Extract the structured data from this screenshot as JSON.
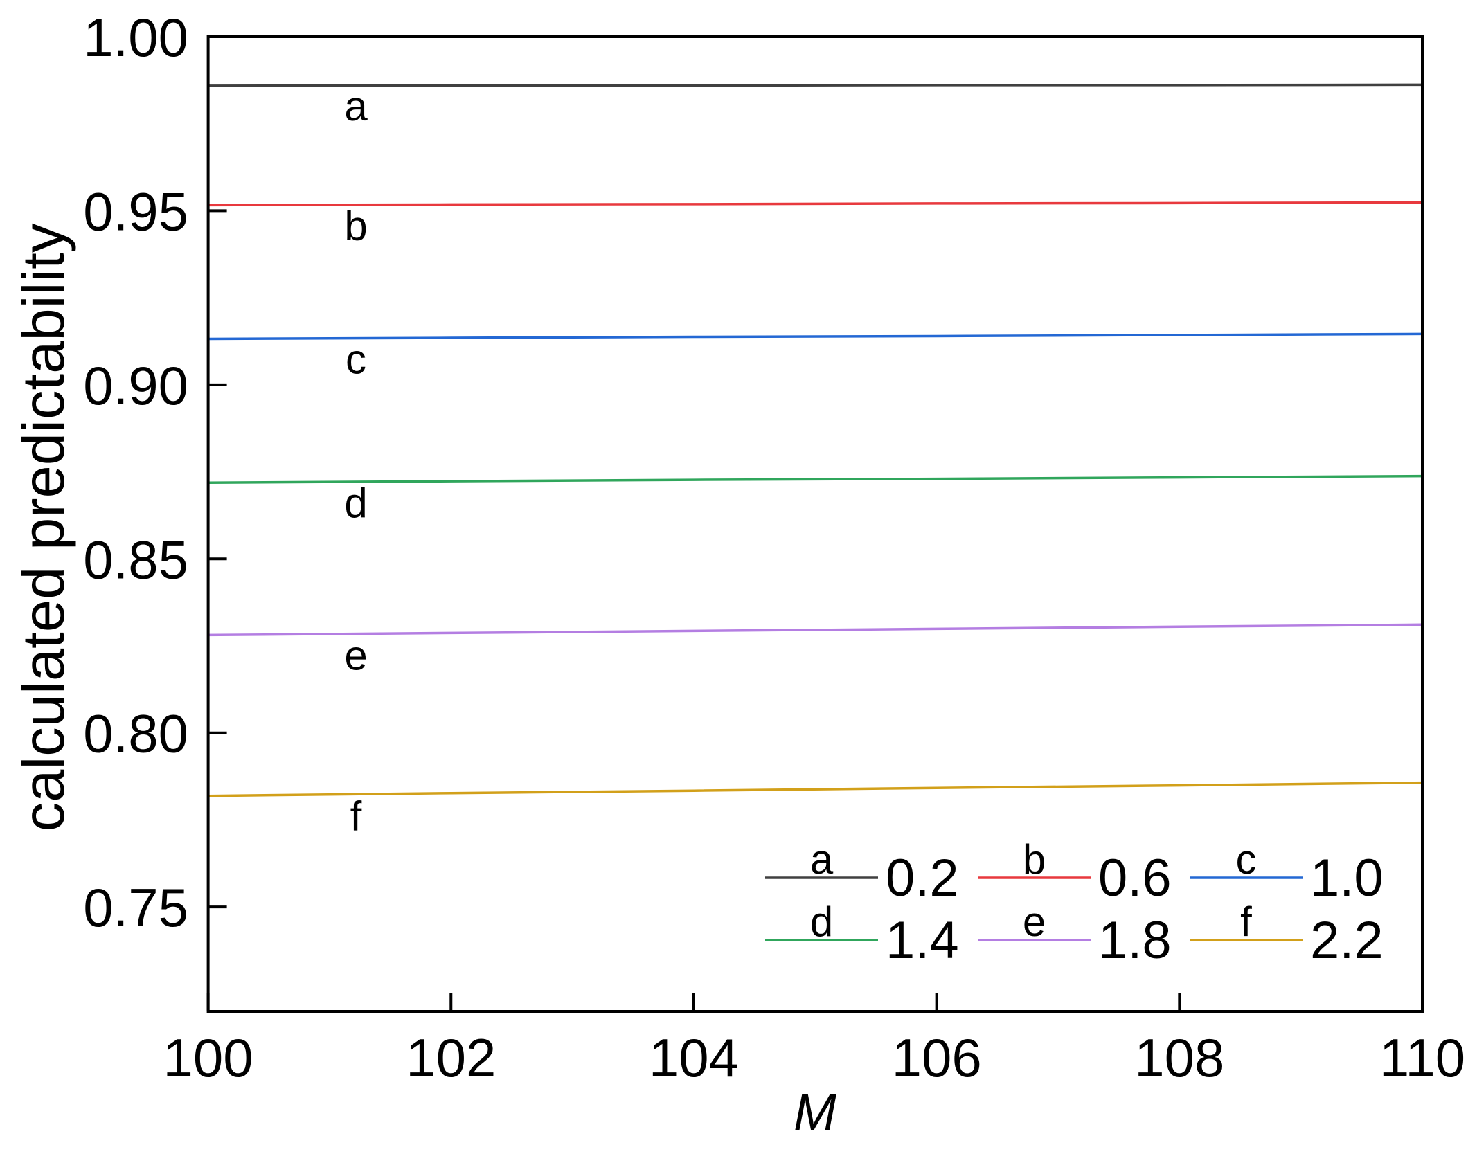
{
  "chart_data": {
    "type": "line",
    "xlabel": "M",
    "ylabel": "calculated predictability",
    "xlim": [
      100,
      110
    ],
    "ylim": [
      0.72,
      1.0
    ],
    "xticks": [
      "100",
      "102",
      "104",
      "106",
      "108",
      "110"
    ],
    "yticks": [
      "0.75",
      "0.80",
      "0.85",
      "0.90",
      "0.95",
      "1.00"
    ],
    "grid": false,
    "legend_position": "bottom-right",
    "x": [
      100,
      102,
      104,
      106,
      108,
      110
    ],
    "series": [
      {
        "label": "a",
        "name": "0.2",
        "color": "#404040",
        "values": [
          0.9859,
          0.986,
          0.986,
          0.9861,
          0.9861,
          0.9862
        ]
      },
      {
        "label": "b",
        "name": "0.6",
        "color": "#e8393e",
        "values": [
          0.9516,
          0.9518,
          0.9519,
          0.9521,
          0.9522,
          0.9524
        ]
      },
      {
        "label": "c",
        "name": "1.0",
        "color": "#2468d4",
        "values": [
          0.9132,
          0.9135,
          0.9138,
          0.914,
          0.9143,
          0.9146
        ]
      },
      {
        "label": "d",
        "name": "1.4",
        "color": "#30a65c",
        "values": [
          0.8719,
          0.8723,
          0.8727,
          0.873,
          0.8734,
          0.8738
        ]
      },
      {
        "label": "e",
        "name": "1.8",
        "color": "#b47ee2",
        "values": [
          0.8281,
          0.8287,
          0.8293,
          0.8299,
          0.8305,
          0.8311
        ]
      },
      {
        "label": "f",
        "name": "2.2",
        "color": "#d2a01a",
        "values": [
          0.7819,
          0.7827,
          0.7834,
          0.7842,
          0.7849,
          0.7857
        ]
      }
    ]
  }
}
